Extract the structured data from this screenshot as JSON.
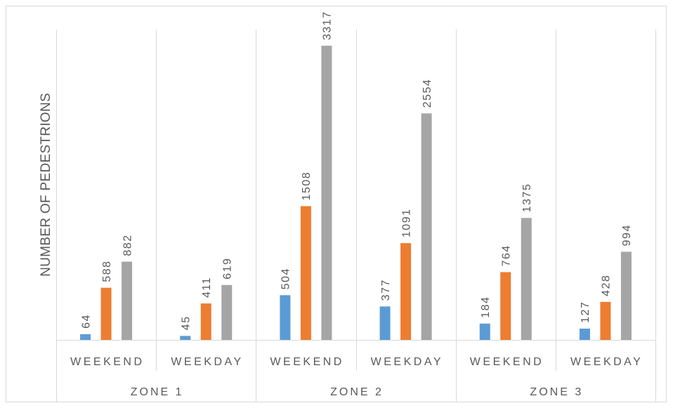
{
  "chart_data": {
    "type": "bar",
    "ylabel": "NUMBER OF PEDESTRIONS",
    "groups": [
      {
        "label": "ZONE 1",
        "categories": [
          "WEEKEND",
          "WEEKDAY"
        ]
      },
      {
        "label": "ZONE 2",
        "categories": [
          "WEEKEND",
          "WEEKDAY"
        ]
      },
      {
        "label": "ZONE 3",
        "categories": [
          "WEEKEND",
          "WEEKDAY"
        ]
      }
    ],
    "series": [
      {
        "color": "#5B9BD5",
        "values": [
          64,
          45,
          504,
          377,
          184,
          127
        ]
      },
      {
        "color": "#ED7D31",
        "values": [
          588,
          411,
          1508,
          1091,
          764,
          428
        ]
      },
      {
        "color": "#A5A5A5",
        "values": [
          882,
          619,
          3317,
          2554,
          1375,
          994
        ]
      }
    ],
    "ylim": [
      0,
      3500
    ],
    "show_y_tick_labels": false,
    "show_legend": false,
    "data_labels": true,
    "grid": {
      "vertical": true,
      "horizontal": false
    }
  }
}
